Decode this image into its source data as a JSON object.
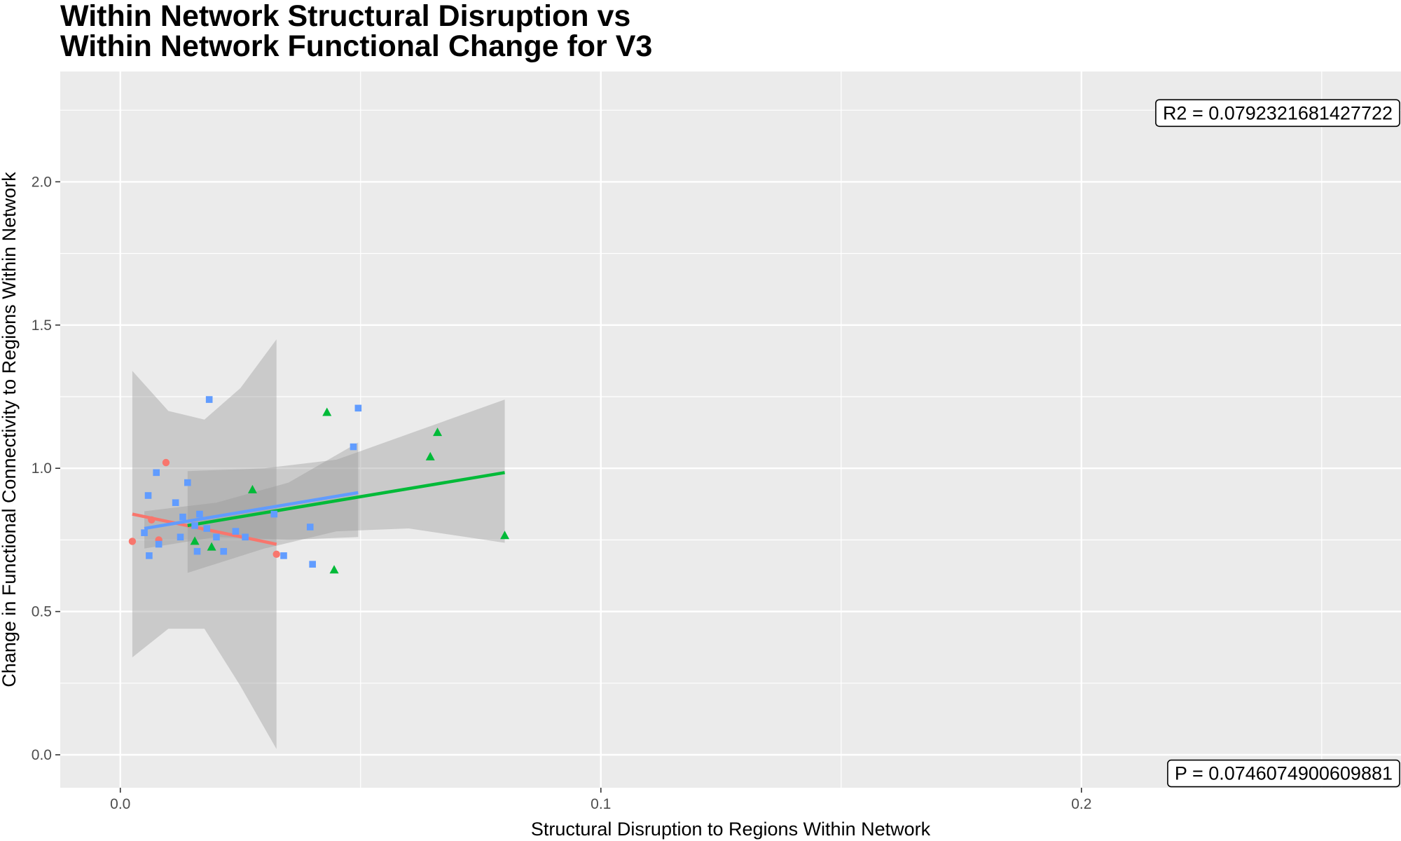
{
  "chart_data": {
    "type": "scatter",
    "title_lines": [
      "Within Network Structural Disruption vs",
      "Within Network Functional Change for V3"
    ],
    "xlabel": "Structural Disruption to Regions Within Network",
    "ylabel": "Change in Functional Connectivity to Regions Within Network",
    "xlim": [
      -0.0125,
      0.2665
    ],
    "ylim": [
      -0.115,
      2.385
    ],
    "x_ticks": [
      0.0,
      0.1,
      0.2
    ],
    "x_tick_labels": [
      "0.0",
      "0.1",
      "0.2"
    ],
    "x_minor_ticks": [
      0.05,
      0.15,
      0.25
    ],
    "y_ticks": [
      0.0,
      0.5,
      1.0,
      1.5,
      2.0
    ],
    "y_tick_labels": [
      "0.0",
      "0.5",
      "1.0",
      "1.5",
      "2.0"
    ],
    "y_minor_ticks": [
      0.25,
      0.75,
      1.25,
      1.75,
      2.25
    ],
    "grid": true,
    "legend": "none",
    "colors": {
      "panel_bg": "#EBEBEB",
      "grid": "#FFFFFF",
      "ribbon": "#999999",
      "red": "#F8766D",
      "green": "#00BA38",
      "blue": "#619CFF"
    },
    "annotations": [
      {
        "name": "r2-label",
        "text": "R2 =  0.0792321681427722",
        "x": 0.2665,
        "y": 2.24,
        "anchor": "right"
      },
      {
        "name": "p-label",
        "text": "P =  0.0746074900609881",
        "x": 0.2665,
        "y": -0.065,
        "anchor": "right"
      }
    ],
    "series": [
      {
        "color": "red",
        "shape": "circle",
        "points": [
          [
            0.0025,
            0.745
          ],
          [
            0.0065,
            0.82
          ],
          [
            0.008,
            0.75
          ],
          [
            0.0095,
            1.02
          ],
          [
            0.0325,
            0.7
          ]
        ],
        "fit": {
          "x0": 0.0025,
          "x1": 0.0325,
          "y0": 0.84,
          "y1": 0.735
        },
        "band_upper": [
          [
            0.0025,
            1.34
          ],
          [
            0.01,
            1.2
          ],
          [
            0.0175,
            1.17
          ],
          [
            0.025,
            1.28
          ],
          [
            0.0325,
            1.45
          ]
        ],
        "band_lower": [
          [
            0.0025,
            0.34
          ],
          [
            0.01,
            0.44
          ],
          [
            0.0175,
            0.44
          ],
          [
            0.025,
            0.24
          ],
          [
            0.0325,
            0.02
          ]
        ]
      },
      {
        "color": "green",
        "shape": "triangle",
        "points": [
          [
            0.0155,
            0.745
          ],
          [
            0.019,
            0.725
          ],
          [
            0.0275,
            0.925
          ],
          [
            0.043,
            1.195
          ],
          [
            0.0445,
            0.645
          ],
          [
            0.0645,
            1.04
          ],
          [
            0.066,
            1.125
          ],
          [
            0.08,
            0.765
          ]
        ],
        "fit": {
          "x0": 0.014,
          "x1": 0.08,
          "y0": 0.8,
          "y1": 0.985
        },
        "band_upper": [
          [
            0.014,
            0.99
          ],
          [
            0.03,
            1.0
          ],
          [
            0.045,
            1.03
          ],
          [
            0.06,
            1.12
          ],
          [
            0.08,
            1.24
          ]
        ],
        "band_lower": [
          [
            0.014,
            0.635
          ],
          [
            0.03,
            0.72
          ],
          [
            0.045,
            0.78
          ],
          [
            0.06,
            0.79
          ],
          [
            0.08,
            0.74
          ]
        ]
      },
      {
        "color": "blue",
        "shape": "square",
        "points": [
          [
            0.005,
            0.775
          ],
          [
            0.0058,
            0.905
          ],
          [
            0.006,
            0.695
          ],
          [
            0.0075,
            0.985
          ],
          [
            0.008,
            0.735
          ],
          [
            0.0115,
            0.88
          ],
          [
            0.0125,
            0.76
          ],
          [
            0.013,
            0.83
          ],
          [
            0.014,
            0.95
          ],
          [
            0.0155,
            0.8
          ],
          [
            0.016,
            0.71
          ],
          [
            0.0165,
            0.84
          ],
          [
            0.018,
            0.79
          ],
          [
            0.0185,
            1.24
          ],
          [
            0.02,
            0.76
          ],
          [
            0.0215,
            0.71
          ],
          [
            0.024,
            0.78
          ],
          [
            0.026,
            0.76
          ],
          [
            0.032,
            0.84
          ],
          [
            0.034,
            0.695
          ],
          [
            0.0395,
            0.795
          ],
          [
            0.04,
            0.665
          ],
          [
            0.0485,
            1.075
          ],
          [
            0.0495,
            1.21
          ]
        ],
        "fit": {
          "x0": 0.005,
          "x1": 0.0495,
          "y0": 0.79,
          "y1": 0.915
        },
        "band_upper": [
          [
            0.005,
            0.85
          ],
          [
            0.02,
            0.88
          ],
          [
            0.035,
            0.95
          ],
          [
            0.0495,
            1.09
          ]
        ],
        "band_lower": [
          [
            0.005,
            0.72
          ],
          [
            0.02,
            0.76
          ],
          [
            0.035,
            0.75
          ],
          [
            0.0495,
            0.76
          ]
        ]
      }
    ]
  }
}
